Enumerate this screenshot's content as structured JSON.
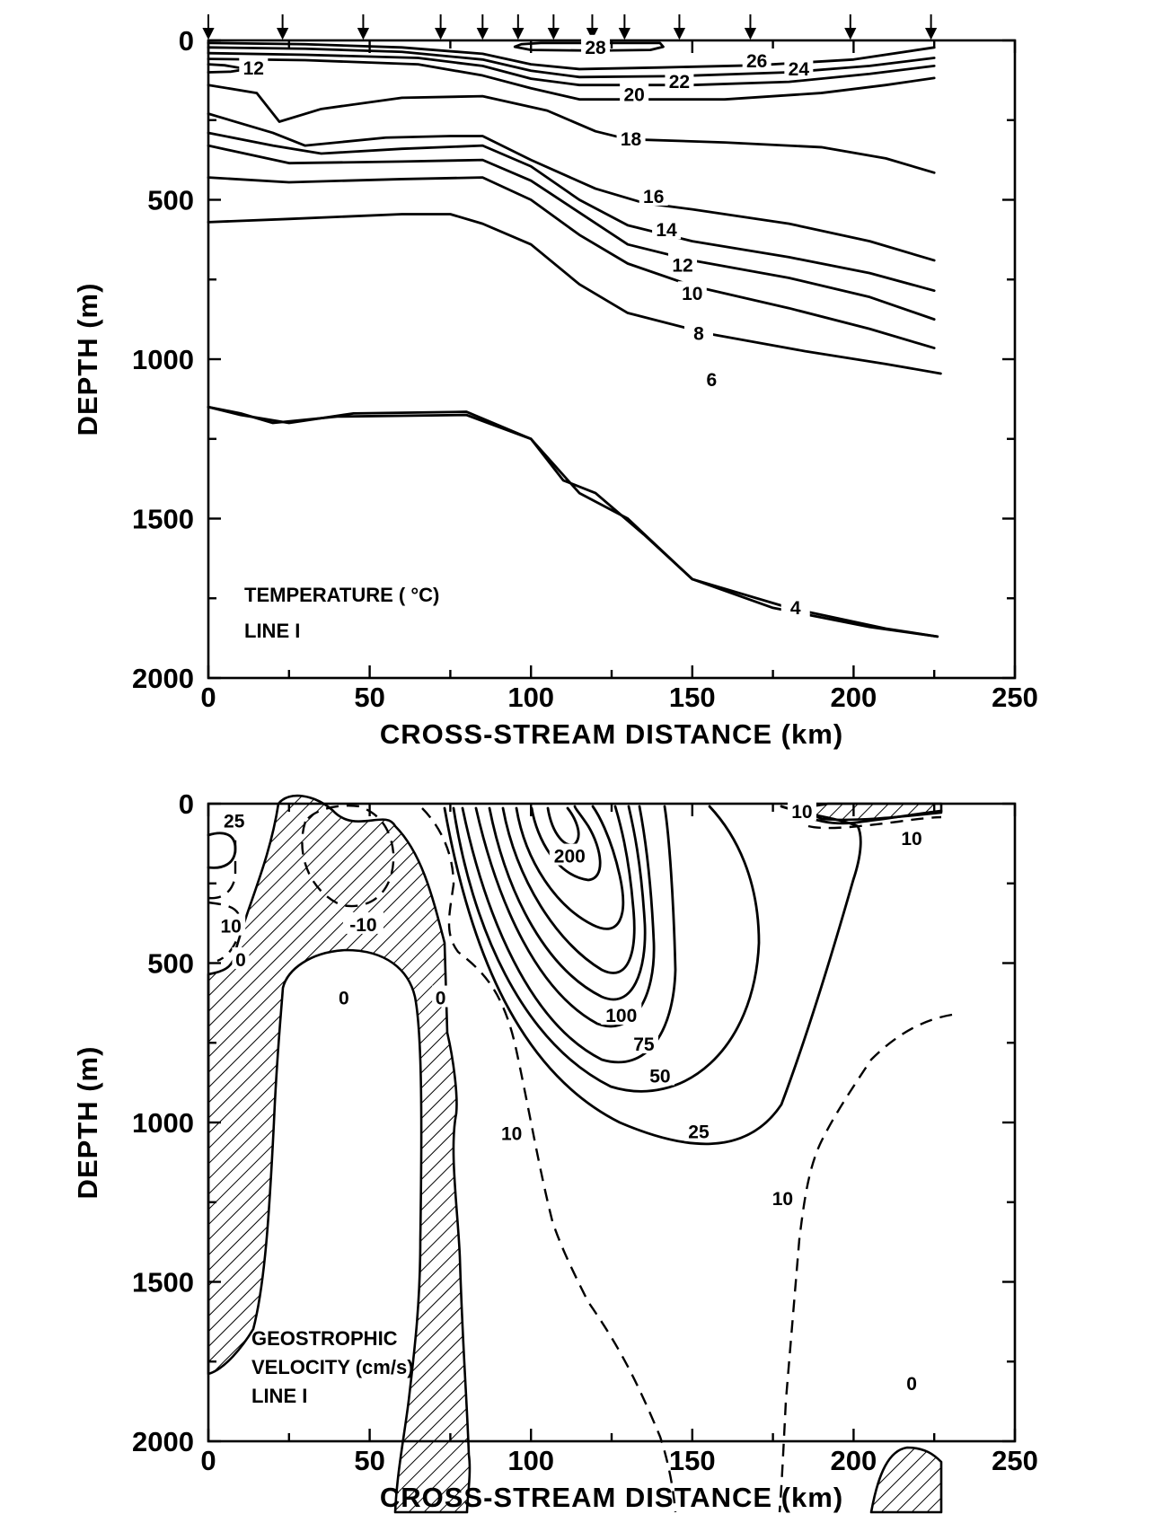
{
  "chart_data": [
    {
      "type": "contour",
      "panel": "top",
      "title": "TEMPERATURE ( °C)",
      "subtitle": "LINE  I",
      "xlabel": "CROSS-STREAM  DISTANCE (km)",
      "ylabel": "DEPTH (m)",
      "xlim": [
        0,
        250
      ],
      "ylim": [
        2000,
        0
      ],
      "x_ticks": [
        "0",
        "50",
        "100",
        "150",
        "200",
        "250"
      ],
      "y_ticks": [
        "0",
        "500",
        "1000",
        "1500",
        "2000"
      ],
      "station_positions_km": [
        0,
        23,
        48,
        72,
        85,
        96,
        107,
        119,
        129,
        146,
        168,
        199,
        224
      ],
      "contours": [
        {
          "label": "28",
          "points": [
            [
              95,
              20
            ],
            [
              97,
              12
            ],
            [
              103,
              8
            ],
            [
              140,
              8
            ],
            [
              141,
              20
            ],
            [
              137,
              30
            ],
            [
              120,
              32
            ],
            [
              100,
              30
            ],
            [
              95,
              20
            ]
          ]
        },
        {
          "label": "26",
          "points": [
            [
              0,
              8
            ],
            [
              30,
              12
            ],
            [
              60,
              22
            ],
            [
              85,
              42
            ],
            [
              100,
              75
            ],
            [
              115,
              90
            ],
            [
              140,
              85
            ],
            [
              170,
              78
            ],
            [
              200,
              60
            ],
            [
              225,
              22
            ]
          ]
        },
        {
          "label": "24",
          "points": [
            [
              0,
              22
            ],
            [
              30,
              26
            ],
            [
              60,
              36
            ],
            [
              85,
              60
            ],
            [
              100,
              95
            ],
            [
              115,
              115
            ],
            [
              145,
              112
            ],
            [
              180,
              100
            ],
            [
              205,
              80
            ],
            [
              225,
              55
            ]
          ]
        },
        {
          "label": "22",
          "points": [
            [
              0,
              40
            ],
            [
              30,
              45
            ],
            [
              65,
              55
            ],
            [
              85,
              80
            ],
            [
              100,
              120
            ],
            [
              115,
              140
            ],
            [
              150,
              140
            ],
            [
              180,
              130
            ],
            [
              205,
              105
            ],
            [
              225,
              80
            ]
          ]
        },
        {
          "label": "20",
          "points": [
            [
              0,
              58
            ],
            [
              30,
              62
            ],
            [
              65,
              75
            ],
            [
              85,
              110
            ],
            [
              100,
              150
            ],
            [
              115,
              185
            ],
            [
              160,
              185
            ],
            [
              190,
              165
            ],
            [
              210,
              140
            ],
            [
              225,
              118
            ]
          ]
        },
        {
          "label": "12",
          "points": [
            [
              0,
              75
            ],
            [
              5,
              78
            ],
            [
              12,
              90
            ],
            [
              7,
              98
            ],
            [
              0,
              100
            ]
          ]
        },
        {
          "label": "18",
          "points": [
            [
              0,
              140
            ],
            [
              15,
              165
            ],
            [
              22,
              255
            ],
            [
              35,
              215
            ],
            [
              60,
              180
            ],
            [
              85,
              175
            ],
            [
              105,
              220
            ],
            [
              120,
              285
            ],
            [
              130,
              310
            ],
            [
              160,
              320
            ],
            [
              190,
              335
            ],
            [
              210,
              370
            ],
            [
              225,
              415
            ]
          ]
        },
        {
          "label": "16",
          "points": [
            [
              0,
              230
            ],
            [
              20,
              290
            ],
            [
              30,
              330
            ],
            [
              55,
              305
            ],
            [
              75,
              300
            ],
            [
              85,
              300
            ],
            [
              100,
              375
            ],
            [
              120,
              465
            ],
            [
              135,
              510
            ],
            [
              150,
              530
            ],
            [
              180,
              575
            ],
            [
              205,
              630
            ],
            [
              225,
              690
            ]
          ]
        },
        {
          "label": "14",
          "points": [
            [
              0,
              290
            ],
            [
              20,
              330
            ],
            [
              35,
              355
            ],
            [
              60,
              340
            ],
            [
              85,
              330
            ],
            [
              100,
              395
            ],
            [
              115,
              500
            ],
            [
              130,
              580
            ],
            [
              150,
              630
            ],
            [
              180,
              680
            ],
            [
              205,
              730
            ],
            [
              225,
              785
            ]
          ]
        },
        {
          "label": "12",
          "points": [
            [
              0,
              330
            ],
            [
              25,
              385
            ],
            [
              60,
              380
            ],
            [
              85,
              375
            ],
            [
              100,
              440
            ],
            [
              115,
              540
            ],
            [
              130,
              640
            ],
            [
              150,
              690
            ],
            [
              180,
              745
            ],
            [
              205,
              805
            ],
            [
              225,
              875
            ]
          ]
        },
        {
          "label": "10",
          "points": [
            [
              0,
              430
            ],
            [
              25,
              445
            ],
            [
              60,
              435
            ],
            [
              85,
              430
            ],
            [
              100,
              500
            ],
            [
              115,
              610
            ],
            [
              130,
              700
            ],
            [
              150,
              770
            ],
            [
              180,
              840
            ],
            [
              205,
              905
            ],
            [
              225,
              965
            ]
          ]
        },
        {
          "label": "8",
          "points": [
            [
              0,
              570
            ],
            [
              25,
              560
            ],
            [
              60,
              545
            ],
            [
              75,
              545
            ],
            [
              85,
              575
            ],
            [
              100,
              640
            ],
            [
              115,
              765
            ],
            [
              130,
              855
            ],
            [
              155,
              920
            ],
            [
              185,
              975
            ],
            [
              210,
              1015
            ],
            [
              227,
              1045
            ]
          ]
        },
        {
          "label": "6",
          "points": [
            [
              0,
              1150
            ],
            [
              10,
              1170
            ],
            [
              20,
              1200
            ],
            [
              40,
              1180
            ],
            [
              80,
              1175
            ],
            [
              100,
              1250
            ],
            [
              110,
              1380
            ],
            [
              120,
              1420
            ],
            [
              135,
              1550
            ],
            [
              150,
              1690
            ],
            [
              175,
              1780
            ],
            [
              205,
              1840
            ],
            [
              226,
              1870
            ]
          ]
        },
        {
          "label": "4",
          "points": [
            [
              0,
              1150
            ],
            [
              10,
              1175
            ],
            [
              25,
              1200
            ],
            [
              45,
              1170
            ],
            [
              80,
              1165
            ],
            [
              100,
              1250
            ],
            [
              115,
              1420
            ],
            [
              130,
              1500
            ],
            [
              150,
              1690
            ],
            [
              180,
              1780
            ],
            [
              210,
              1845
            ],
            [
              226,
              1870
            ]
          ]
        }
      ]
    },
    {
      "type": "contour",
      "panel": "bottom",
      "title": "GEOSTROPHIC",
      "subtitle": "VELOCITY (cm/s)",
      "line_label": "LINE  I",
      "xlabel": "CROSS-STREAM  DISTANCE (km)",
      "ylabel": "DEPTH (m)",
      "xlim": [
        0,
        250
      ],
      "ylim": [
        2000,
        0
      ],
      "x_ticks": [
        "0",
        "50",
        "100",
        "150",
        "200",
        "250"
      ],
      "y_ticks": [
        "0",
        "500",
        "1000",
        "1500",
        "2000"
      ],
      "contour_labels": [
        {
          "label": "25",
          "x": 8,
          "y": 55
        },
        {
          "label": "200",
          "x": 112,
          "y": 165
        },
        {
          "label": "10",
          "x": 218,
          "y": 110
        },
        {
          "label": "10",
          "x": 7,
          "y": 385
        },
        {
          "label": "-10",
          "x": 48,
          "y": 380
        },
        {
          "label": "0",
          "x": 10,
          "y": 490
        },
        {
          "label": "0",
          "x": 42,
          "y": 610
        },
        {
          "label": "0",
          "x": 72,
          "y": 610
        },
        {
          "label": "100",
          "x": 128,
          "y": 665
        },
        {
          "label": "75",
          "x": 135,
          "y": 755
        },
        {
          "label": "50",
          "x": 140,
          "y": 855
        },
        {
          "label": "25",
          "x": 152,
          "y": 1030
        },
        {
          "label": "10",
          "x": 94,
          "y": 1035
        },
        {
          "label": "10",
          "x": 178,
          "y": 1240
        },
        {
          "label": "0",
          "x": 218,
          "y": 1820
        },
        {
          "label": "10",
          "x": 184,
          "y": 25
        }
      ]
    }
  ]
}
